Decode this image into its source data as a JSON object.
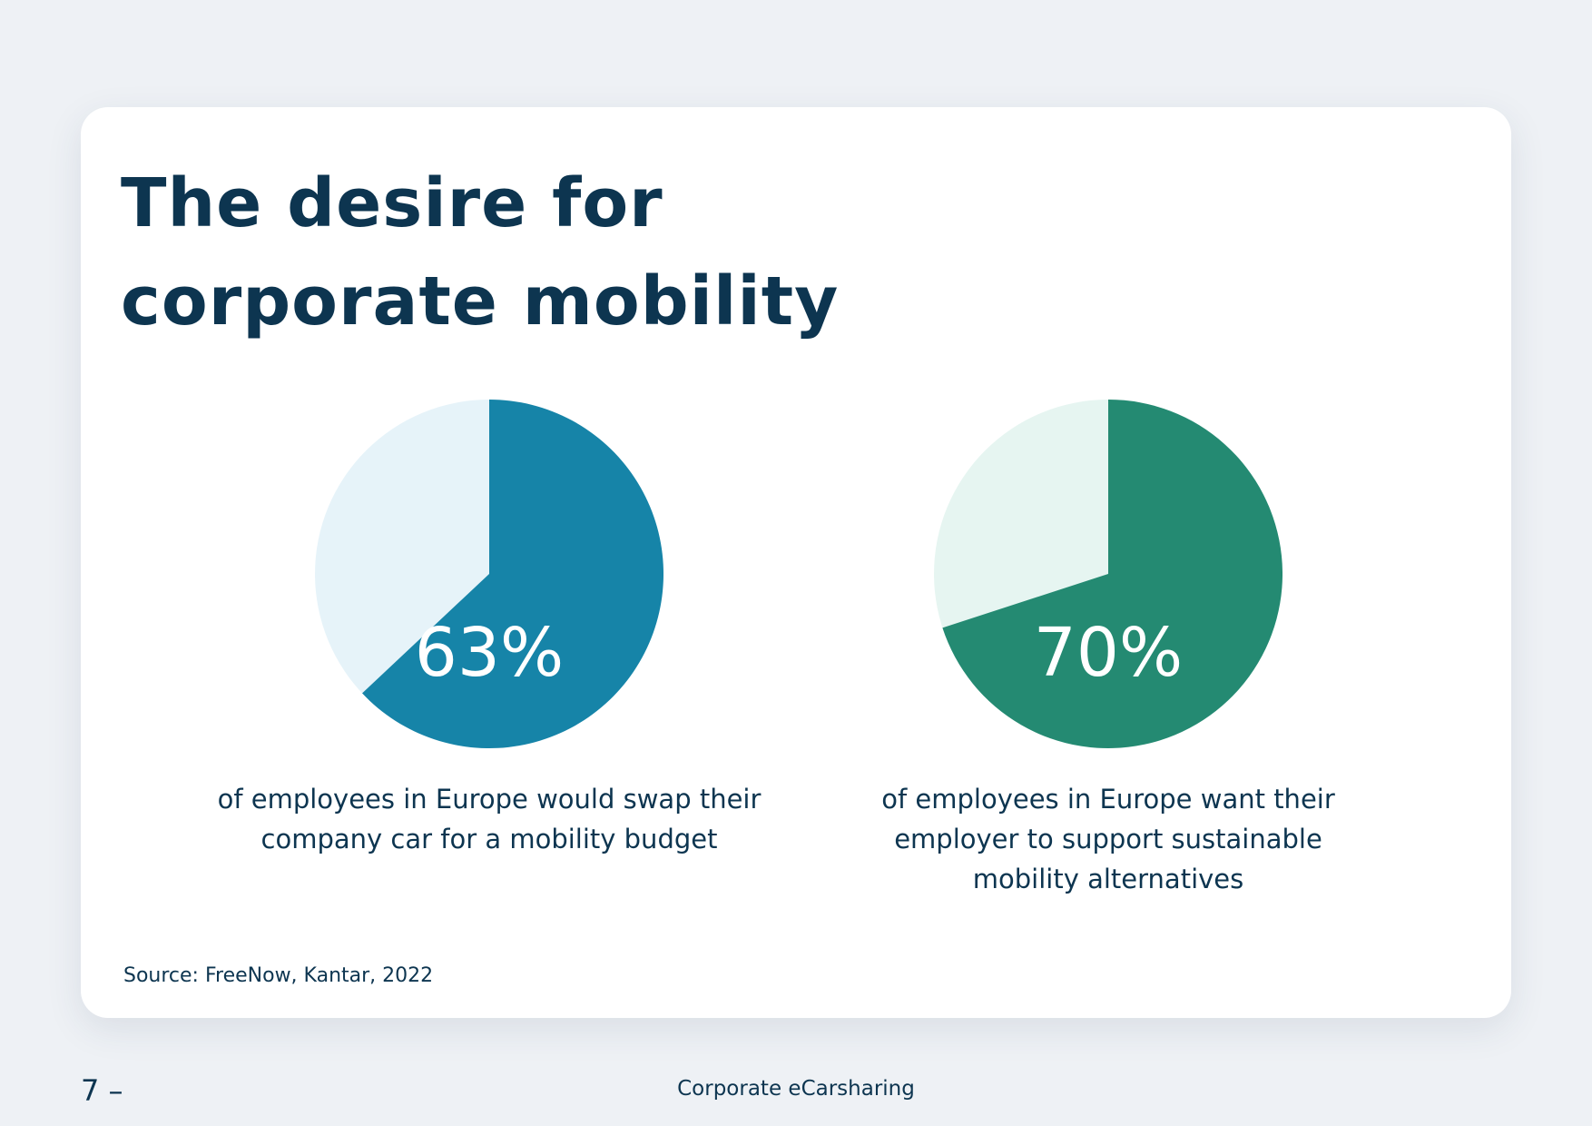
{
  "page": {
    "title_lines": [
      "The desire for",
      "corporate mobility"
    ],
    "source": "Source: FreeNow, Kantar, 2022",
    "page_number": "7 –",
    "footer_title": "Corporate eCarsharing"
  },
  "colors": {
    "background": "#eef1f5",
    "card": "#ffffff",
    "text": "#0d3550",
    "pie1_fill": "#1684a8",
    "pie1_rest": "#e6f3f9",
    "pie2_fill": "#248a72",
    "pie2_rest": "#e6f5f1"
  },
  "chart_data": [
    {
      "type": "pie",
      "value": 63,
      "remainder": 37,
      "label": "63%",
      "caption_lines": [
        "of employees in Europe would swap their",
        "company car for a mobility budget"
      ]
    },
    {
      "type": "pie",
      "value": 70,
      "remainder": 30,
      "label": "70%",
      "caption_lines": [
        "of employees in Europe want their",
        "employer to support sustainable",
        "mobility alternatives"
      ]
    }
  ]
}
